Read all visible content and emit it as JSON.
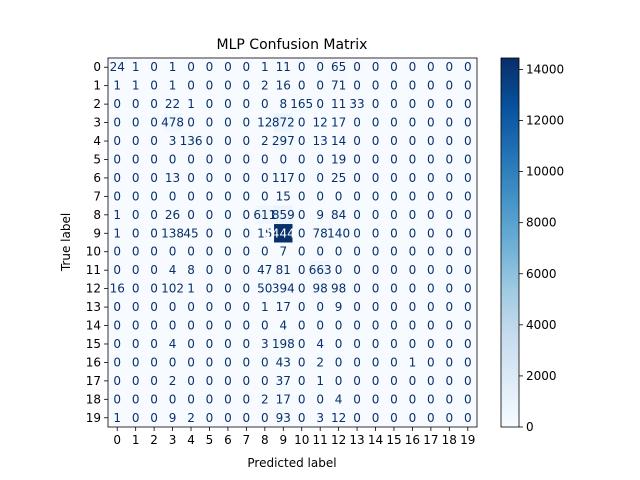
{
  "chart_data": {
    "type": "heatmap",
    "title": "MLP Confusion Matrix",
    "xlabel": "Predicted label",
    "ylabel": "True label",
    "x_ticks": [
      "0",
      "1",
      "2",
      "3",
      "4",
      "5",
      "6",
      "7",
      "8",
      "9",
      "10",
      "11",
      "12",
      "13",
      "14",
      "15",
      "16",
      "17",
      "18",
      "19"
    ],
    "y_ticks": [
      "0",
      "1",
      "2",
      "3",
      "4",
      "5",
      "6",
      "7",
      "8",
      "9",
      "10",
      "11",
      "12",
      "13",
      "14",
      "15",
      "16",
      "17",
      "18",
      "19"
    ],
    "matrix": [
      [
        24,
        1,
        0,
        1,
        0,
        0,
        0,
        0,
        1,
        11,
        0,
        0,
        65,
        0,
        0,
        0,
        0,
        0,
        0,
        0
      ],
      [
        1,
        1,
        0,
        1,
        0,
        0,
        0,
        0,
        2,
        16,
        0,
        0,
        71,
        0,
        0,
        0,
        0,
        0,
        0,
        0
      ],
      [
        0,
        0,
        0,
        22,
        1,
        0,
        0,
        0,
        0,
        8,
        165,
        0,
        11,
        33,
        0,
        0,
        0,
        0,
        0,
        0
      ],
      [
        0,
        0,
        0,
        478,
        0,
        0,
        0,
        0,
        12,
        872,
        0,
        12,
        17,
        0,
        0,
        0,
        0,
        0,
        0,
        0
      ],
      [
        0,
        0,
        0,
        3,
        136,
        0,
        0,
        0,
        2,
        297,
        0,
        13,
        14,
        0,
        0,
        0,
        0,
        0,
        0,
        0
      ],
      [
        0,
        0,
        0,
        0,
        0,
        0,
        0,
        0,
        0,
        0,
        0,
        0,
        19,
        0,
        0,
        0,
        0,
        0,
        0,
        0
      ],
      [
        0,
        0,
        0,
        13,
        0,
        0,
        0,
        0,
        0,
        117,
        0,
        0,
        25,
        0,
        0,
        0,
        0,
        0,
        0,
        0
      ],
      [
        0,
        0,
        0,
        0,
        0,
        0,
        0,
        0,
        0,
        15,
        0,
        0,
        0,
        0,
        0,
        0,
        0,
        0,
        0,
        0
      ],
      [
        1,
        0,
        0,
        26,
        0,
        0,
        0,
        0,
        611,
        859,
        0,
        9,
        84,
        0,
        0,
        0,
        0,
        0,
        0,
        0
      ],
      [
        1,
        0,
        0,
        138,
        45,
        0,
        0,
        0,
        15,
        14447,
        0,
        78,
        140,
        0,
        0,
        0,
        0,
        0,
        0,
        0
      ],
      [
        0,
        0,
        0,
        0,
        0,
        0,
        0,
        0,
        0,
        7,
        0,
        0,
        0,
        0,
        0,
        0,
        0,
        0,
        0,
        0
      ],
      [
        0,
        0,
        0,
        4,
        8,
        0,
        0,
        0,
        47,
        81,
        0,
        663,
        0,
        0,
        0,
        0,
        0,
        0,
        0,
        0
      ],
      [
        16,
        0,
        0,
        102,
        1,
        0,
        0,
        0,
        50,
        394,
        0,
        98,
        98,
        0,
        0,
        0,
        0,
        0,
        0,
        0
      ],
      [
        0,
        0,
        0,
        0,
        0,
        0,
        0,
        0,
        1,
        17,
        0,
        0,
        9,
        0,
        0,
        0,
        0,
        0,
        0,
        0
      ],
      [
        0,
        0,
        0,
        0,
        0,
        0,
        0,
        0,
        0,
        4,
        0,
        0,
        0,
        0,
        0,
        0,
        0,
        0,
        0,
        0
      ],
      [
        0,
        0,
        0,
        4,
        0,
        0,
        0,
        0,
        3,
        198,
        0,
        4,
        0,
        0,
        0,
        0,
        0,
        0,
        0,
        0
      ],
      [
        0,
        0,
        0,
        0,
        0,
        0,
        0,
        0,
        0,
        43,
        0,
        2,
        0,
        0,
        0,
        0,
        1,
        0,
        0,
        0
      ],
      [
        0,
        0,
        0,
        2,
        0,
        0,
        0,
        0,
        0,
        37,
        0,
        1,
        0,
        0,
        0,
        0,
        0,
        0,
        0,
        0
      ],
      [
        0,
        0,
        0,
        0,
        0,
        0,
        0,
        0,
        2,
        17,
        0,
        0,
        4,
        0,
        0,
        0,
        0,
        0,
        0,
        0
      ],
      [
        1,
        0,
        0,
        9,
        2,
        0,
        0,
        0,
        0,
        93,
        0,
        3,
        12,
        0,
        0,
        0,
        0,
        0,
        0,
        0
      ]
    ],
    "colormap": "Blues",
    "vmin": 0,
    "vmax": 14447,
    "colorbar_ticks": [
      0,
      2000,
      4000,
      6000,
      8000,
      10000,
      12000,
      14000
    ],
    "text_color_light": "#ffffff",
    "text_color_dark": "#08306b"
  }
}
